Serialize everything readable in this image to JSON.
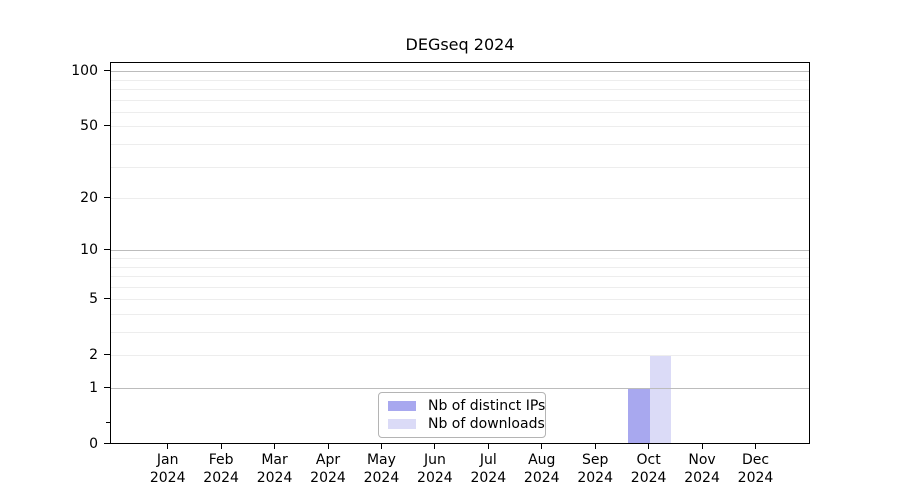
{
  "title": "DEGseq 2024",
  "legend": {
    "items": [
      {
        "label": "Nb of distinct IPs",
        "color": "#a8a8ef"
      },
      {
        "label": "Nb of downloads",
        "color": "#dbdbf7"
      }
    ]
  },
  "colors": {
    "distinct_ips_bar": "#a8a8ef",
    "downloads_bar": "#dbdbf7",
    "grid_major": "#bcbcbc",
    "grid_minor": "#ededed",
    "axis": "#000000",
    "legend_border": "#b4b4b4"
  },
  "chart_data": {
    "type": "bar",
    "title": "DEGseq 2024",
    "categories": [
      "Jan",
      "Feb",
      "Mar",
      "Apr",
      "May",
      "Jun",
      "Jul",
      "Aug",
      "Sep",
      "Oct",
      "Nov",
      "Dec"
    ],
    "year_label": "2024",
    "series": [
      {
        "name": "Nb of distinct IPs",
        "color": "#a8a8ef",
        "values": [
          0,
          0,
          0,
          0,
          0,
          0,
          0,
          0,
          0,
          1,
          0,
          0
        ]
      },
      {
        "name": "Nb of downloads",
        "color": "#dbdbf7",
        "values": [
          0,
          0,
          0,
          0,
          0,
          0,
          0,
          0,
          0,
          2,
          0,
          0
        ]
      }
    ],
    "yscale": "log1p",
    "ylim": [
      0,
      112
    ],
    "yticks": [
      0,
      1,
      2,
      5,
      10,
      20,
      50,
      100
    ],
    "y_minor_axis_ticks": [
      0.3
    ],
    "grid_major": [
      1,
      10,
      100
    ],
    "grid_minor": [
      2,
      3,
      4,
      5,
      6,
      7,
      8,
      9,
      20,
      30,
      40,
      50,
      60,
      70,
      80,
      90
    ],
    "grid": "on",
    "legend_position": "lower center",
    "xlabel": "",
    "ylabel": ""
  }
}
